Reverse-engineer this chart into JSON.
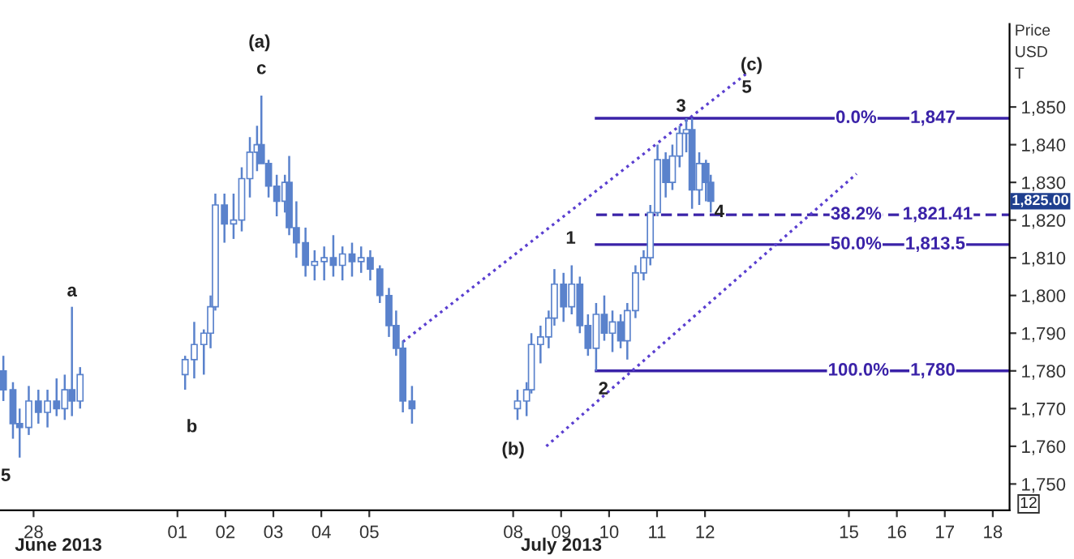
{
  "chart_data": {
    "type": "candlestick",
    "ylabel": "Price USD T",
    "xlim": [
      "2013-06-27T07:12",
      "2013-07-18T08:24"
    ],
    "ylim": [
      1743,
      1872
    ],
    "xticks": [
      {
        "value": "2013-06-28",
        "label": "28"
      },
      {
        "value": "2013-07-01",
        "label": "01"
      },
      {
        "value": "2013-07-02",
        "label": "02"
      },
      {
        "value": "2013-07-03",
        "label": "03"
      },
      {
        "value": "2013-07-04",
        "label": "04"
      },
      {
        "value": "2013-07-05",
        "label": "05"
      },
      {
        "value": "2013-07-08",
        "label": "08"
      },
      {
        "value": "2013-07-09",
        "label": "09"
      },
      {
        "value": "2013-07-10",
        "label": "10"
      },
      {
        "value": "2013-07-11",
        "label": "11"
      },
      {
        "value": "2013-07-12",
        "label": "12"
      },
      {
        "value": "2013-07-15",
        "label": "15"
      },
      {
        "value": "2013-07-16",
        "label": "16"
      },
      {
        "value": "2013-07-17",
        "label": "17"
      },
      {
        "value": "2013-07-18",
        "label": "18"
      }
    ],
    "yticks": [
      {
        "value": 1750,
        "label": "1,750"
      },
      {
        "value": 1760,
        "label": "1,760"
      },
      {
        "value": 1770,
        "label": "1,770"
      },
      {
        "value": 1780,
        "label": "1,780"
      },
      {
        "value": 1790,
        "label": "1,790"
      },
      {
        "value": 1800,
        "label": "1,800"
      },
      {
        "value": 1810,
        "label": "1,810"
      },
      {
        "value": 1820,
        "label": "1,820"
      },
      {
        "value": 1830,
        "label": "1,830"
      },
      {
        "value": 1840,
        "label": "1,840"
      },
      {
        "value": 1850,
        "label": "1,850"
      }
    ],
    "series": [
      {
        "color": "#5a82cc",
        "x": [
          "2013-06-27T08:53",
          "2013-06-27T13:41",
          "2013-06-27T17:02",
          "2013-06-27T21:36",
          "2013-06-28T02:24",
          "2013-06-28T06:58",
          "2013-06-28T11:31",
          "2013-06-28T15:36",
          "2013-06-28T19:12",
          "2013-06-28T23:17",
          "2013-07-01T03:50",
          "2013-07-01T08:24",
          "2013-07-01T13:12",
          "2013-07-01T16:34",
          "2013-07-01T18:58",
          "2013-07-01T23:31",
          "2013-07-02T04:05",
          "2013-07-02T08:10",
          "2013-07-02T12:14",
          "2013-07-02T15:50",
          "2013-07-02T18:00",
          "2013-07-02T21:36",
          "2013-07-03T01:41",
          "2013-07-03T05:46",
          "2013-07-03T07:55",
          "2013-07-03T11:31",
          "2013-07-03T16:05",
          "2013-07-03T20:38",
          "2013-07-04T01:26",
          "2013-07-04T06:00",
          "2013-07-04T10:34",
          "2013-07-04T15:22",
          "2013-07-04T19:55",
          "2013-07-05T00:29",
          "2013-07-05T05:17",
          "2013-07-05T09:50",
          "2013-07-05T13:26",
          "2013-07-05T16:48",
          "2013-07-05T21:22",
          "2013-07-08T02:10",
          "2013-07-08T06:43",
          "2013-07-08T09:07",
          "2013-07-08T13:41",
          "2013-07-08T17:46",
          "2013-07-08T20:38",
          "2013-07-09T01:12",
          "2013-07-09T05:17",
          "2013-07-09T09:22",
          "2013-07-09T13:26",
          "2013-07-09T17:31",
          "2013-07-09T21:36",
          "2013-07-10T01:41",
          "2013-07-10T05:46",
          "2013-07-10T09:07",
          "2013-07-10T13:12",
          "2013-07-10T17:17",
          "2013-07-10T20:38",
          "2013-07-11T00:14",
          "2013-07-11T04:19",
          "2013-07-11T07:41",
          "2013-07-11T11:17",
          "2013-07-11T14:38",
          "2013-07-11T17:31",
          "2013-07-11T21:07",
          "2013-07-12T00:29",
          "2013-07-12T02:53"
        ],
        "ohlc": [
          [
            1780,
            1784,
            1772,
            1775
          ],
          [
            1775,
            1777,
            1762,
            1766
          ],
          [
            1766,
            1770,
            1757,
            1765
          ],
          [
            1765,
            1776,
            1763,
            1772
          ],
          [
            1772,
            1775,
            1766,
            1769
          ],
          [
            1769,
            1775,
            1765,
            1772
          ],
          [
            1772,
            1778,
            1768,
            1770
          ],
          [
            1770,
            1779,
            1767,
            1775
          ],
          [
            1775,
            1797,
            1768,
            1772
          ],
          [
            1772,
            1781,
            1770,
            1779
          ],
          [
            1779,
            1784,
            1775,
            1783
          ],
          [
            1783,
            1793,
            1778,
            1787
          ],
          [
            1787,
            1791,
            1779,
            1790
          ],
          [
            1790,
            1800,
            1786,
            1797
          ],
          [
            1797,
            1827,
            1796,
            1824
          ],
          [
            1824,
            1827,
            1814,
            1819
          ],
          [
            1819,
            1827,
            1815,
            1820
          ],
          [
            1820,
            1834,
            1817,
            1831
          ],
          [
            1831,
            1842,
            1826,
            1838
          ],
          [
            1838,
            1845,
            1833,
            1840
          ],
          [
            1840,
            1853,
            1835,
            1835
          ],
          [
            1835,
            1836,
            1826,
            1829
          ],
          [
            1829,
            1832,
            1821,
            1825
          ],
          [
            1825,
            1832,
            1822,
            1830
          ],
          [
            1830,
            1837,
            1816,
            1818
          ],
          [
            1818,
            1825,
            1810,
            1814
          ],
          [
            1814,
            1818,
            1805,
            1808
          ],
          [
            1808,
            1812,
            1804,
            1809
          ],
          [
            1809,
            1813,
            1804,
            1810
          ],
          [
            1810,
            1816,
            1805,
            1808
          ],
          [
            1808,
            1813,
            1804,
            1811
          ],
          [
            1811,
            1814,
            1805,
            1809
          ],
          [
            1809,
            1813,
            1806,
            1810
          ],
          [
            1810,
            1812,
            1804,
            1807
          ],
          [
            1807,
            1808,
            1798,
            1800
          ],
          [
            1800,
            1802,
            1789,
            1792
          ],
          [
            1792,
            1796,
            1784,
            1786
          ],
          [
            1786,
            1788,
            1769,
            1772
          ],
          [
            1772,
            1776,
            1766,
            1770
          ],
          [
            1770,
            1775,
            1767,
            1772
          ],
          [
            1772,
            1777,
            1768,
            1775
          ],
          [
            1775,
            1790,
            1774,
            1787
          ],
          [
            1787,
            1792,
            1782,
            1789
          ],
          [
            1789,
            1796,
            1786,
            1794
          ],
          [
            1794,
            1807,
            1792,
            1803
          ],
          [
            1803,
            1806,
            1793,
            1797
          ],
          [
            1797,
            1808,
            1795,
            1803
          ],
          [
            1803,
            1805,
            1790,
            1792
          ],
          [
            1792,
            1795,
            1784,
            1786
          ],
          [
            1786,
            1798,
            1780,
            1795
          ],
          [
            1795,
            1800,
            1788,
            1790
          ],
          [
            1790,
            1796,
            1785,
            1793
          ],
          [
            1793,
            1795,
            1786,
            1788
          ],
          [
            1788,
            1798,
            1783,
            1796
          ],
          [
            1796,
            1808,
            1794,
            1806
          ],
          [
            1806,
            1812,
            1804,
            1810
          ],
          [
            1810,
            1824,
            1808,
            1822
          ],
          [
            1822,
            1840,
            1821,
            1836
          ],
          [
            1836,
            1838,
            1826,
            1830
          ],
          [
            1830,
            1840,
            1828,
            1837
          ],
          [
            1837,
            1845,
            1834,
            1843
          ],
          [
            1843,
            1847,
            1838,
            1844
          ],
          [
            1844,
            1847,
            1823,
            1828
          ],
          [
            1828,
            1838,
            1824,
            1835
          ],
          [
            1835,
            1836,
            1825,
            1830
          ],
          [
            1830,
            1832,
            1822,
            1825
          ]
        ]
      },
      {
        "type": "line",
        "color": "#3a22a8",
        "line_style": "solid",
        "x": [
          "2013-07-09T17:31",
          "2013-07-18T08:24"
        ],
        "values": [
          1847,
          1847
        ]
      },
      {
        "type": "line",
        "color": "#3a22a8",
        "line_style": "dashed",
        "x": [
          "2013-07-09T17:31",
          "2013-07-18T08:24"
        ],
        "values": [
          1821.41,
          1821.41
        ]
      },
      {
        "type": "line",
        "color": "#3a22a8",
        "line_style": "solid",
        "x": [
          "2013-07-09T17:31",
          "2013-07-18T08:24"
        ],
        "values": [
          1813.5,
          1813.5
        ]
      },
      {
        "type": "line",
        "color": "#3a22a8",
        "line_style": "solid",
        "x": [
          "2013-07-09T17:31",
          "2013-07-18T08:24"
        ],
        "values": [
          1780,
          1780
        ]
      },
      {
        "type": "line",
        "color": "#5a3fd0",
        "line_style": "dotted",
        "x": [
          "2013-07-05T16:48",
          "2013-07-12T20:24"
        ],
        "values": [
          1787.7,
          1858.7
        ]
      },
      {
        "type": "line",
        "color": "#5a3fd0",
        "line_style": "dotted",
        "x": [
          "2013-07-08T16:34",
          "2013-07-15T03:50"
        ],
        "values": [
          1760,
          1832.3
        ]
      }
    ],
    "annotations": [
      "1,825.00",
      "0.0%",
      "1,847",
      "38.2%",
      "1,821.41",
      "50.0%",
      "1,813.5",
      "100.0%",
      "1,780",
      "(a)",
      "c",
      "a",
      "b",
      "5",
      "(b)",
      "1",
      "2",
      "3",
      "4",
      "(c)",
      "5",
      "June 2013",
      "July 2013",
      "12"
    ]
  }
}
